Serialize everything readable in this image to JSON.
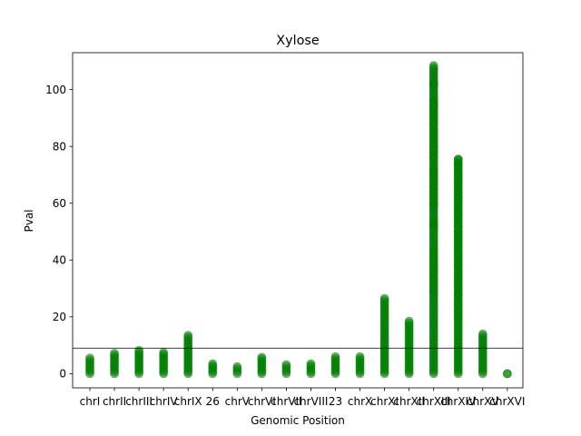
{
  "chart_data": {
    "type": "scatter",
    "title": "Xylose",
    "xlabel": "Genomic Position",
    "ylabel": "Pval",
    "categories": [
      "chrI",
      "chrII",
      "chrIII",
      "chrIV",
      "chrIX",
      "26",
      "chrV",
      "chrVI",
      "chrVII",
      "chrVIII",
      "23",
      "chrX",
      "chrXI",
      "chrXII",
      "chrXIII",
      "chrXIV",
      "chrXV",
      "chrXVI"
    ],
    "ylim": [
      -5,
      113
    ],
    "yticks": [
      0,
      20,
      40,
      60,
      80,
      100
    ],
    "threshold": 9,
    "marker_color": "#008000",
    "grid": false,
    "series": [
      {
        "category": "chrI",
        "min": 0,
        "max": 5.5
      },
      {
        "category": "chrII",
        "min": 0,
        "max": 7.2
      },
      {
        "category": "chrIII",
        "min": 0,
        "max": 8.2
      },
      {
        "category": "chrIV",
        "min": 0,
        "max": 7.5
      },
      {
        "category": "chrIX",
        "min": 0,
        "max": 13.5
      },
      {
        "category": "26",
        "min": 0,
        "max": 3.5
      },
      {
        "category": "chrV",
        "min": 0,
        "max": 2.5
      },
      {
        "category": "chrVI",
        "min": 0,
        "max": 5.8
      },
      {
        "category": "chrVII",
        "min": 0,
        "max": 3.2
      },
      {
        "category": "chrVIII",
        "min": 0,
        "max": 3.5
      },
      {
        "category": "23",
        "min": 0,
        "max": 6.0
      },
      {
        "category": "chrX",
        "min": 0,
        "max": 6.0
      },
      {
        "category": "chrXI",
        "min": 0,
        "max": 26.5
      },
      {
        "category": "chrXII",
        "min": 0,
        "max": 18.5
      },
      {
        "category": "chrXIII",
        "min": 0,
        "max": 108.5
      },
      {
        "category": "chrXIV",
        "min": 0,
        "max": 75.5
      },
      {
        "category": "chrXV",
        "min": 0,
        "max": 14.0
      },
      {
        "category": "chrXVI",
        "min": 0,
        "max": 0
      }
    ],
    "outliers": [
      {
        "category": "chrXIII",
        "values": [
          102,
          101.5,
          96,
          95,
          94,
          92,
          90,
          88,
          86,
          84,
          82,
          80,
          78,
          76,
          72,
          70,
          68,
          66,
          64,
          62,
          60,
          59,
          53,
          52,
          43,
          41,
          39,
          37,
          35,
          33,
          31,
          29
        ]
      },
      {
        "category": "chrXIV",
        "values": [
          75.5,
          74,
          72,
          70,
          68,
          66,
          64,
          62,
          60,
          58,
          56,
          54,
          52,
          50,
          48,
          46,
          44,
          42,
          40,
          38,
          36,
          34,
          32,
          30,
          28,
          26,
          24,
          22,
          20
        ]
      }
    ]
  }
}
